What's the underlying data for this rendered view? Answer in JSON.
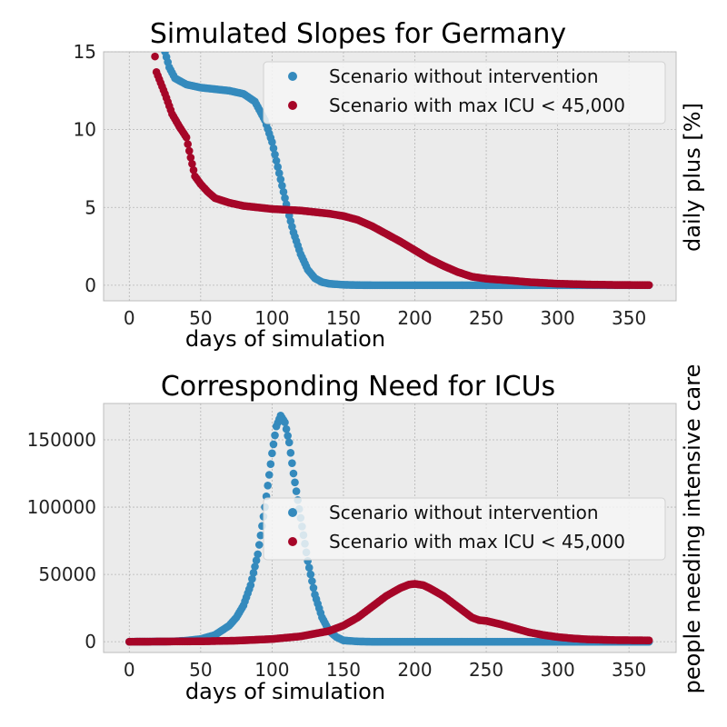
{
  "chart_data": [
    {
      "type": "scatter",
      "title": "Simulated Slopes for Germany",
      "xlabel": "days of simulation",
      "ylabel": "daily plus [%]",
      "xlim": [
        -18,
        383
      ],
      "ylim": [
        -1,
        15
      ],
      "xticks": [
        0,
        50,
        100,
        150,
        200,
        250,
        300,
        350
      ],
      "yticks": [
        0,
        5,
        10,
        15
      ],
      "legend": "top-right",
      "series": [
        {
          "name": "Scenario without intervention",
          "color": "#348ABD",
          "points": [
            [
              25,
              15
            ],
            [
              28,
              14
            ],
            [
              32,
              13.3
            ],
            [
              40,
              12.9
            ],
            [
              50,
              12.7
            ],
            [
              60,
              12.6
            ],
            [
              70,
              12.5
            ],
            [
              80,
              12.3
            ],
            [
              88,
              11.8
            ],
            [
              95,
              10.6
            ],
            [
              100,
              9.2
            ],
            [
              105,
              7.2
            ],
            [
              110,
              5.2
            ],
            [
              115,
              3.4
            ],
            [
              120,
              2.0
            ],
            [
              125,
              1.0
            ],
            [
              130,
              0.45
            ],
            [
              135,
              0.2
            ],
            [
              140,
              0.1
            ],
            [
              150,
              0.03
            ],
            [
              160,
              0.01
            ],
            [
              170,
              0
            ],
            [
              364,
              0
            ]
          ]
        },
        {
          "name": "Scenario with max ICU < 45,000",
          "color": "#A60628",
          "points": [
            [
              18,
              14.7
            ],
            [
              19,
              13.7
            ],
            [
              22,
              13.0
            ],
            [
              25,
              12.3
            ],
            [
              30,
              11.0
            ],
            [
              35,
              10.2
            ],
            [
              40,
              9.5
            ],
            [
              43,
              8.2
            ],
            [
              46,
              7.0
            ],
            [
              50,
              6.5
            ],
            [
              55,
              6.0
            ],
            [
              60,
              5.6
            ],
            [
              70,
              5.3
            ],
            [
              80,
              5.1
            ],
            [
              90,
              5.0
            ],
            [
              100,
              4.9
            ],
            [
              110,
              4.85
            ],
            [
              120,
              4.8
            ],
            [
              130,
              4.7
            ],
            [
              140,
              4.6
            ],
            [
              150,
              4.45
            ],
            [
              160,
              4.2
            ],
            [
              170,
              3.8
            ],
            [
              180,
              3.3
            ],
            [
              190,
              2.8
            ],
            [
              200,
              2.25
            ],
            [
              210,
              1.7
            ],
            [
              220,
              1.25
            ],
            [
              230,
              0.85
            ],
            [
              240,
              0.55
            ],
            [
              250,
              0.42
            ],
            [
              260,
              0.35
            ],
            [
              270,
              0.28
            ],
            [
              280,
              0.2
            ],
            [
              290,
              0.15
            ],
            [
              300,
              0.1
            ],
            [
              320,
              0.05
            ],
            [
              340,
              0.02
            ],
            [
              364,
              0.01
            ]
          ]
        }
      ]
    },
    {
      "type": "scatter",
      "title": "Corresponding Need for ICUs",
      "xlabel": "days of simulation",
      "ylabel": "people needing intensive care",
      "xlim": [
        -18,
        383
      ],
      "ylim": [
        -8000,
        177000
      ],
      "xticks": [
        0,
        50,
        100,
        150,
        200,
        250,
        300,
        350
      ],
      "yticks": [
        0,
        50000,
        100000,
        150000
      ],
      "legend": "center-right",
      "series": [
        {
          "name": "Scenario without intervention",
          "color": "#348ABD",
          "points": [
            [
              0,
              0
            ],
            [
              30,
              200
            ],
            [
              40,
              800
            ],
            [
              50,
              2000
            ],
            [
              60,
              5000
            ],
            [
              70,
              12000
            ],
            [
              75,
              18000
            ],
            [
              80,
              27000
            ],
            [
              85,
              42000
            ],
            [
              90,
              65000
            ],
            [
              95,
              100000
            ],
            [
              100,
              140000
            ],
            [
              103,
              160000
            ],
            [
              106,
              168000
            ],
            [
              109,
              163000
            ],
            [
              112,
              148000
            ],
            [
              115,
              125000
            ],
            [
              120,
              92000
            ],
            [
              125,
              60000
            ],
            [
              130,
              35000
            ],
            [
              135,
              18000
            ],
            [
              140,
              8000
            ],
            [
              145,
              3500
            ],
            [
              150,
              1000
            ],
            [
              160,
              200
            ],
            [
              170,
              0
            ],
            [
              364,
              0
            ]
          ]
        },
        {
          "name": "Scenario with max ICU < 45,000",
          "color": "#A60628",
          "points": [
            [
              0,
              0
            ],
            [
              50,
              300
            ],
            [
              75,
              800
            ],
            [
              100,
              2000
            ],
            [
              120,
              4000
            ],
            [
              140,
              8000
            ],
            [
              150,
              12000
            ],
            [
              160,
              18000
            ],
            [
              170,
              26000
            ],
            [
              180,
              34000
            ],
            [
              190,
              40000
            ],
            [
              196,
              42500
            ],
            [
              200,
              43000
            ],
            [
              206,
              42000
            ],
            [
              210,
              40000
            ],
            [
              220,
              34000
            ],
            [
              230,
              26000
            ],
            [
              240,
              18000
            ],
            [
              245,
              16000
            ],
            [
              250,
              15500
            ],
            [
              260,
              13000
            ],
            [
              270,
              10000
            ],
            [
              280,
              7000
            ],
            [
              290,
              5000
            ],
            [
              300,
              3500
            ],
            [
              310,
              2500
            ],
            [
              320,
              1800
            ],
            [
              340,
              1200
            ],
            [
              364,
              1000
            ]
          ]
        }
      ]
    }
  ]
}
